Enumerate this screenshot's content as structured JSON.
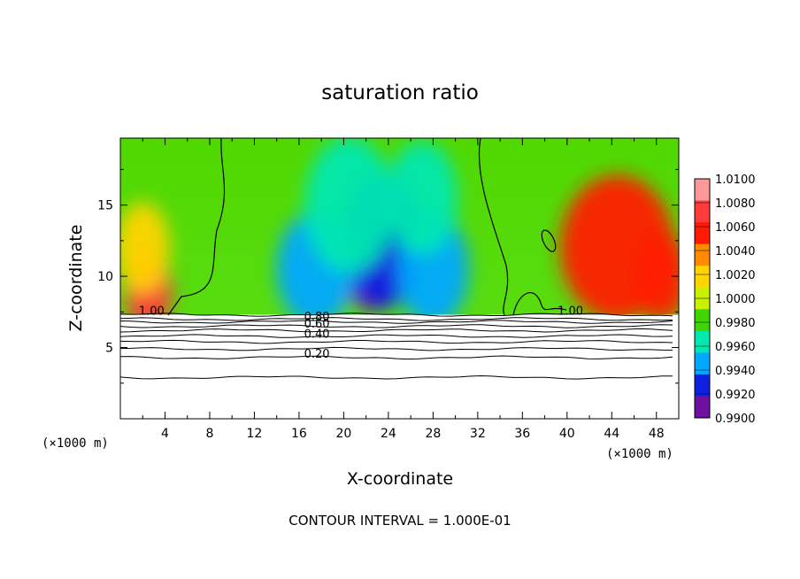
{
  "chart_data": {
    "type": "heatmap",
    "title": "saturation ratio",
    "xlabel": "X-coordinate",
    "ylabel": "Z-coordinate",
    "x_unit_left": "(×1000 m)",
    "x_unit_right": "(×1000 m)",
    "xlim": [
      0,
      50
    ],
    "ylim": [
      0,
      19.7
    ],
    "x_ticks": [
      "4",
      "8",
      "12",
      "16",
      "20",
      "24",
      "28",
      "32",
      "36",
      "40",
      "44",
      "48"
    ],
    "x_tick_values": [
      4,
      8,
      12,
      16,
      20,
      24,
      28,
      32,
      36,
      40,
      44,
      48
    ],
    "y_ticks": [
      "5",
      "10",
      "15"
    ],
    "y_tick_values": [
      5,
      10,
      15
    ],
    "colorbar": {
      "labels": [
        "1.0100",
        "1.0080",
        "1.0060",
        "1.0040",
        "1.0020",
        "1.0000",
        "0.9980",
        "0.9960",
        "0.9940",
        "0.9920",
        "0.9900"
      ],
      "values": [
        1.01,
        1.008,
        1.006,
        1.004,
        1.002,
        1.0,
        0.998,
        0.996,
        0.994,
        0.992,
        0.99
      ],
      "colors": [
        "#ff9999",
        "#ff3a3a",
        "#ff1a00",
        "#ff8c00",
        "#ffd400",
        "#c8f000",
        "#40d400",
        "#00e8b0",
        "#00a8ff",
        "#1020e0",
        "#7010a0"
      ]
    },
    "contour_labels": [
      {
        "text": "1.00",
        "x": 2.8,
        "z": 7.3
      },
      {
        "text": "1.00",
        "x": 40.3,
        "z": 7.3
      },
      {
        "text": "0.80",
        "x": 17.6,
        "z": 6.9
      },
      {
        "text": "0.60",
        "x": 17.6,
        "z": 6.4
      },
      {
        "text": "0.40",
        "x": 17.6,
        "z": 5.7
      },
      {
        "text": "0.20",
        "x": 17.6,
        "z": 4.3
      }
    ],
    "contour_levels_below": [
      {
        "level": 1.0,
        "z": 7.3
      },
      {
        "level": 0.9,
        "z": 7.0
      },
      {
        "level": 0.8,
        "z": 6.8
      },
      {
        "level": 0.7,
        "z": 6.5
      },
      {
        "level": 0.6,
        "z": 6.2
      },
      {
        "level": 0.5,
        "z": 5.8
      },
      {
        "level": 0.4,
        "z": 5.4
      },
      {
        "level": 0.3,
        "z": 4.9
      },
      {
        "level": 0.2,
        "z": 4.3
      },
      {
        "level": 0.1,
        "z": 2.9
      }
    ],
    "field_blobs": [
      {
        "x": 22.5,
        "z": 9.5,
        "value": 0.99,
        "sx": 1.5,
        "sz": 1.2
      },
      {
        "x": 23.5,
        "z": 12.5,
        "value": 0.992,
        "sx": 2.2,
        "sz": 3.0
      },
      {
        "x": 17.5,
        "z": 10.5,
        "value": 0.9935,
        "sx": 2.2,
        "sz": 2.5
      },
      {
        "x": 28.0,
        "z": 10.5,
        "value": 0.9935,
        "sx": 2.0,
        "sz": 2.5
      },
      {
        "x": 27.0,
        "z": 15.5,
        "value": 0.9955,
        "sx": 2.0,
        "sz": 2.5
      },
      {
        "x": 20.5,
        "z": 15.0,
        "value": 0.996,
        "sx": 2.5,
        "sz": 3.0
      },
      {
        "x": 2.5,
        "z": 9.0,
        "value": 1.009,
        "sx": 1.3,
        "sz": 1.8
      },
      {
        "x": 2.0,
        "z": 12.0,
        "value": 1.003,
        "sx": 1.5,
        "sz": 2.0
      },
      {
        "x": 44.5,
        "z": 12.0,
        "value": 1.0065,
        "sx": 3.2,
        "sz": 3.2
      },
      {
        "x": 48.5,
        "z": 10.0,
        "value": 1.006,
        "sx": 1.5,
        "sz": 2.0
      }
    ],
    "footer": "CONTOUR INTERVAL = 1.000E-01"
  }
}
